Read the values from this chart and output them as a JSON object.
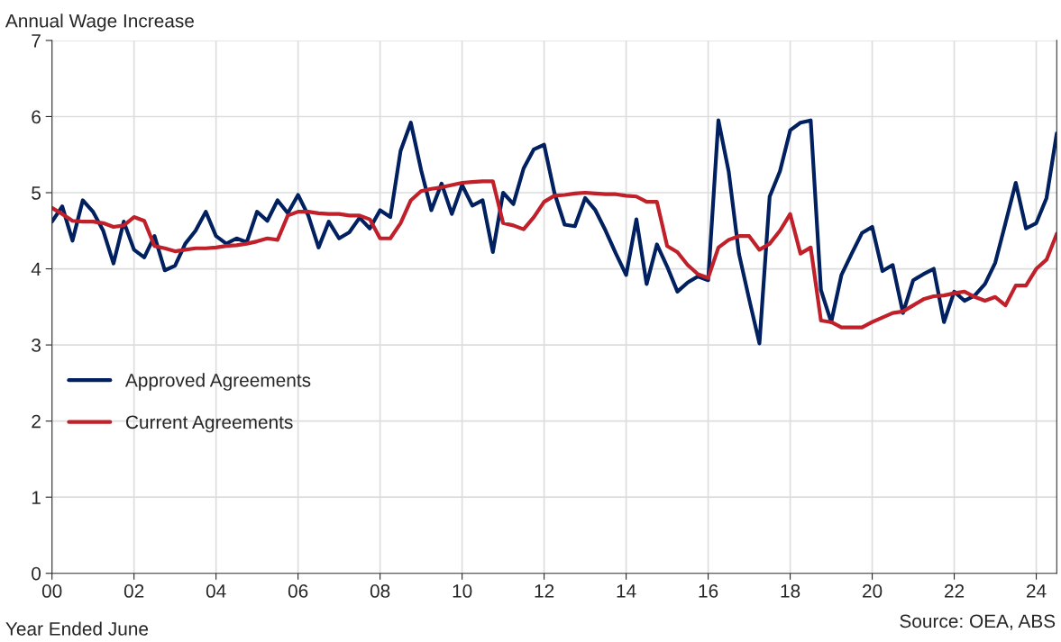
{
  "chart_data": {
    "type": "line",
    "ylabel": "Annual Wage Increase",
    "xlabel": "Year Ended June",
    "annotations": [
      "Source: OEA, ABS"
    ],
    "x": [
      0,
      0.25,
      0.5,
      0.75,
      1,
      1.25,
      1.5,
      1.75,
      2,
      2.25,
      2.5,
      2.75,
      3,
      3.25,
      3.5,
      3.75,
      4,
      4.25,
      4.5,
      4.75,
      5,
      5.25,
      5.5,
      5.75,
      6,
      6.25,
      6.5,
      6.75,
      7,
      7.25,
      7.5,
      7.75,
      8,
      8.25,
      8.5,
      8.75,
      9,
      9.25,
      9.5,
      9.75,
      10,
      10.25,
      10.5,
      10.75,
      11,
      11.25,
      11.5,
      11.75,
      12,
      12.25,
      12.5,
      12.75,
      13,
      13.25,
      13.5,
      13.75,
      14,
      14.25,
      14.5,
      14.75,
      15,
      15.25,
      15.5,
      15.75,
      16,
      16.25,
      16.5,
      16.75,
      17,
      17.25,
      17.5,
      17.75,
      18,
      18.25,
      18.5,
      18.75,
      19,
      19.25,
      19.5,
      19.75,
      20,
      20.25,
      20.5,
      20.75,
      21,
      21.25,
      21.5,
      21.75,
      22,
      22.25,
      22.5,
      22.75,
      23,
      23.25,
      23.5,
      23.75,
      24,
      24.25,
      24.5
    ],
    "series": [
      {
        "name": "Approved Agreements",
        "color": "#002060",
        "values": [
          4.62,
          4.82,
          4.37,
          4.9,
          4.75,
          4.5,
          4.07,
          4.62,
          4.25,
          4.15,
          4.43,
          3.98,
          4.04,
          4.33,
          4.5,
          4.75,
          4.43,
          4.33,
          4.4,
          4.35,
          4.75,
          4.63,
          4.9,
          4.73,
          4.97,
          4.7,
          4.28,
          4.62,
          4.4,
          4.48,
          4.67,
          4.53,
          4.77,
          4.68,
          5.55,
          5.92,
          5.3,
          4.77,
          5.12,
          4.72,
          5.1,
          4.83,
          4.9,
          4.22,
          5.0,
          4.85,
          5.32,
          5.57,
          5.63,
          5.0,
          4.58,
          4.56,
          4.93,
          4.77,
          4.5,
          4.2,
          3.92,
          4.65,
          3.8,
          4.32,
          4.03,
          3.7,
          3.82,
          3.9,
          3.85,
          5.95,
          5.28,
          4.2,
          3.6,
          3.02,
          4.95,
          5.28,
          5.82,
          5.92,
          5.95,
          3.72,
          3.3,
          3.92,
          4.2,
          4.47,
          4.55,
          3.97,
          4.05,
          3.42,
          3.85,
          3.93,
          4.0,
          3.3,
          3.7,
          3.58,
          3.65,
          3.8,
          4.08,
          4.6,
          5.13,
          4.53,
          4.6,
          4.93,
          5.78
        ]
      },
      {
        "name": "Current Agreements",
        "color": "#c0202a",
        "values": [
          4.8,
          4.72,
          4.63,
          4.62,
          4.62,
          4.6,
          4.55,
          4.57,
          4.68,
          4.63,
          4.3,
          4.27,
          4.23,
          4.25,
          4.27,
          4.27,
          4.28,
          4.3,
          4.31,
          4.33,
          4.36,
          4.4,
          4.38,
          4.7,
          4.75,
          4.75,
          4.73,
          4.72,
          4.72,
          4.7,
          4.7,
          4.65,
          4.4,
          4.4,
          4.6,
          4.9,
          5.02,
          5.05,
          5.07,
          5.1,
          5.13,
          5.14,
          5.15,
          5.15,
          4.6,
          4.57,
          4.52,
          4.68,
          4.88,
          4.96,
          4.97,
          4.99,
          5.0,
          4.99,
          4.98,
          4.98,
          4.96,
          4.95,
          4.88,
          4.88,
          4.3,
          4.22,
          4.05,
          3.93,
          3.88,
          4.28,
          4.38,
          4.43,
          4.43,
          4.25,
          4.33,
          4.5,
          4.72,
          4.2,
          4.28,
          3.32,
          3.3,
          3.23,
          3.23,
          3.23,
          3.3,
          3.36,
          3.42,
          3.44,
          3.52,
          3.6,
          3.64,
          3.65,
          3.68,
          3.7,
          3.63,
          3.58,
          3.63,
          3.52,
          3.78,
          3.78,
          4.0,
          4.12,
          4.46
        ]
      }
    ],
    "xlim": [
      0,
      24.5
    ],
    "xticks": [
      {
        "value": 0,
        "label": "00"
      },
      {
        "value": 2,
        "label": "02"
      },
      {
        "value": 4,
        "label": "04"
      },
      {
        "value": 6,
        "label": "06"
      },
      {
        "value": 8,
        "label": "08"
      },
      {
        "value": 10,
        "label": "10"
      },
      {
        "value": 12,
        "label": "12"
      },
      {
        "value": 14,
        "label": "14"
      },
      {
        "value": 16,
        "label": "16"
      },
      {
        "value": 18,
        "label": "18"
      },
      {
        "value": 20,
        "label": "20"
      },
      {
        "value": 22,
        "label": "22"
      },
      {
        "value": 24,
        "label": "24"
      }
    ],
    "ylim": [
      0,
      7
    ],
    "yticks": [
      0,
      1,
      2,
      3,
      4,
      5,
      6,
      7
    ],
    "grid": true,
    "legend": "left",
    "line_style": "solid"
  }
}
